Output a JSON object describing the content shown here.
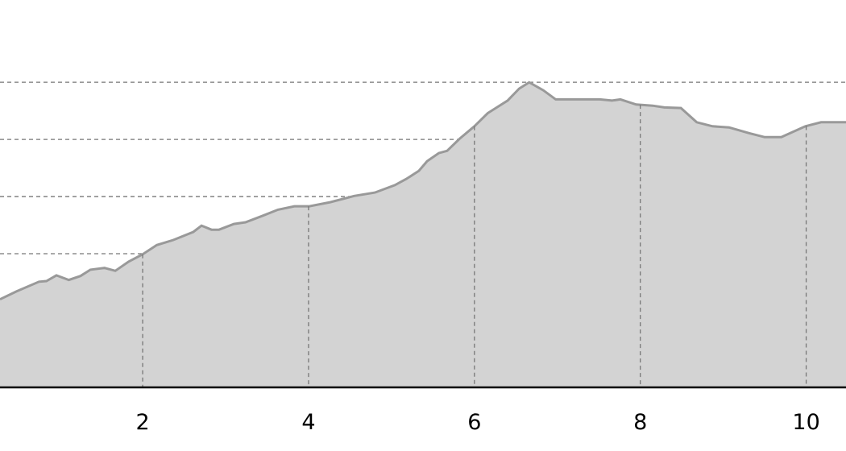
{
  "chart_data": {
    "type": "area",
    "title": "",
    "xlabel": "",
    "ylabel": "",
    "xlim": [
      0.28,
      10.48
    ],
    "ylim": [
      0.66,
      7.44
    ],
    "grid": true,
    "x_ticks": [
      2,
      4,
      6,
      8,
      10
    ],
    "x_tick_labels": [
      "2",
      "4",
      "6",
      "8",
      "10"
    ],
    "y_gridlines": [
      1,
      2,
      3,
      4,
      5,
      6
    ],
    "colors": {
      "fill": "#d3d3d3",
      "line": "#999999",
      "grid": "#777777",
      "axis": "#000000"
    },
    "x": [
      0.28,
      0.48,
      0.75,
      0.84,
      0.96,
      1.11,
      1.25,
      1.37,
      1.54,
      1.67,
      1.83,
      2.0,
      2.17,
      2.37,
      2.61,
      2.71,
      2.83,
      2.92,
      3.1,
      3.24,
      3.44,
      3.63,
      3.83,
      4.01,
      4.26,
      4.55,
      4.8,
      5.04,
      5.18,
      5.33,
      5.43,
      5.57,
      5.67,
      5.82,
      6.0,
      6.16,
      6.4,
      6.54,
      6.66,
      6.83,
      6.98,
      7.51,
      7.66,
      7.76,
      7.95,
      8.15,
      8.29,
      8.49,
      8.68,
      8.87,
      9.07,
      9.31,
      9.5,
      9.7,
      9.99,
      10.18,
      10.48
    ],
    "y": [
      2.2,
      2.34,
      2.51,
      2.52,
      2.62,
      2.54,
      2.61,
      2.72,
      2.75,
      2.7,
      2.86,
      2.99,
      3.15,
      3.24,
      3.38,
      3.49,
      3.42,
      3.42,
      3.52,
      3.55,
      3.66,
      3.77,
      3.83,
      3.83,
      3.9,
      4.01,
      4.07,
      4.2,
      4.31,
      4.45,
      4.62,
      4.76,
      4.8,
      5.01,
      5.23,
      5.46,
      5.68,
      5.89,
      6.0,
      5.86,
      5.7,
      5.7,
      5.68,
      5.7,
      5.61,
      5.59,
      5.56,
      5.55,
      5.3,
      5.23,
      5.21,
      5.11,
      5.04,
      5.04,
      5.23,
      5.3,
      5.3
    ]
  }
}
